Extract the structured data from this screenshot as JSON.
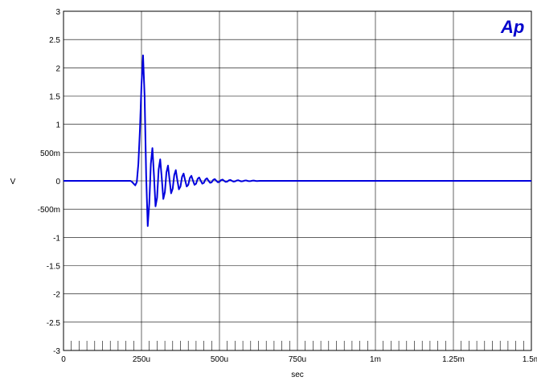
{
  "chart_data": {
    "type": "line",
    "title": "",
    "xlabel": "sec",
    "ylabel": "V",
    "xlim": [
      0,
      0.0015
    ],
    "ylim": [
      -3,
      3
    ],
    "grid": true,
    "x_ticks": [
      {
        "value": 0,
        "label": "0"
      },
      {
        "value": 0.00025,
        "label": "250u"
      },
      {
        "value": 0.0005,
        "label": "500u"
      },
      {
        "value": 0.00075,
        "label": "750u"
      },
      {
        "value": 0.001,
        "label": "1m"
      },
      {
        "value": 0.00125,
        "label": "1.25m"
      },
      {
        "value": 0.0015,
        "label": "1.5m"
      }
    ],
    "y_ticks": [
      {
        "value": 3,
        "label": "3"
      },
      {
        "value": 2.5,
        "label": "2.5"
      },
      {
        "value": 2,
        "label": "2"
      },
      {
        "value": 1.5,
        "label": "1.5"
      },
      {
        "value": 1,
        "label": "1"
      },
      {
        "value": 0.5,
        "label": "500m"
      },
      {
        "value": 0,
        "label": "0"
      },
      {
        "value": -0.5,
        "label": "-500m"
      },
      {
        "value": -1,
        "label": "-1"
      },
      {
        "value": -1.5,
        "label": "-1.5"
      },
      {
        "value": -2,
        "label": "-2"
      },
      {
        "value": -2.5,
        "label": "-2.5"
      },
      {
        "value": -3,
        "label": "-3"
      }
    ],
    "series": [
      {
        "color": "#0000dd",
        "x": [
          0,
          0.000215,
          0.00022,
          0.000225,
          0.00023,
          0.000235,
          0.00024,
          0.000245,
          0.00025,
          0.000255,
          0.00026,
          0.000265,
          0.00027,
          0.000275,
          0.00028,
          0.000285,
          0.00029,
          0.000295,
          0.0003,
          0.000305,
          0.00031,
          0.000315,
          0.00032,
          0.000325,
          0.00033,
          0.000335,
          0.00034,
          0.000345,
          0.00035,
          0.000355,
          0.00036,
          0.000365,
          0.00037,
          0.000375,
          0.00038,
          0.000385,
          0.00039,
          0.000395,
          0.0004,
          0.000405,
          0.00041,
          0.000415,
          0.00042,
          0.000425,
          0.00043,
          0.000435,
          0.00044,
          0.000445,
          0.00045,
          0.000455,
          0.00046,
          0.000465,
          0.00047,
          0.000475,
          0.00048,
          0.000485,
          0.00049,
          0.000495,
          0.0005,
          0.000505,
          0.00051,
          0.000515,
          0.00052,
          0.000525,
          0.00053,
          0.000535,
          0.00054,
          0.000545,
          0.00055,
          0.000555,
          0.00056,
          0.000565,
          0.00057,
          0.000575,
          0.00058,
          0.000585,
          0.00059,
          0.000595,
          0.0006,
          0.000605,
          0.00061,
          0.000615,
          0.00062,
          0.000625,
          0.00063,
          0.0015
        ],
        "y": [
          0,
          0,
          -0.02,
          -0.05,
          -0.08,
          -0.02,
          0.3,
          0.9,
          1.7,
          2.22,
          1.5,
          0.1,
          -0.8,
          -0.4,
          0.3,
          0.58,
          0.1,
          -0.45,
          -0.3,
          0.2,
          0.38,
          0.05,
          -0.32,
          -0.2,
          0.15,
          0.27,
          0.02,
          -0.22,
          -0.14,
          0.1,
          0.19,
          0.01,
          -0.15,
          -0.1,
          0.07,
          0.13,
          0.01,
          -0.1,
          -0.07,
          0.05,
          0.09,
          0.005,
          -0.07,
          -0.05,
          0.035,
          0.06,
          0.003,
          -0.05,
          -0.035,
          0.025,
          0.045,
          0.002,
          -0.035,
          -0.025,
          0.018,
          0.032,
          0.001,
          -0.025,
          -0.018,
          0.013,
          0.023,
          0.001,
          -0.018,
          -0.013,
          0.009,
          0.016,
          0.0,
          -0.013,
          -0.009,
          0.006,
          0.011,
          0.0,
          -0.009,
          -0.006,
          0.004,
          0.008,
          0.0,
          -0.006,
          -0.004,
          0.003,
          0.005,
          0.0,
          -0.004,
          -0.002,
          0.0,
          0
        ]
      }
    ]
  },
  "logo": {
    "text": "Ap",
    "color": "#0000cc"
  }
}
